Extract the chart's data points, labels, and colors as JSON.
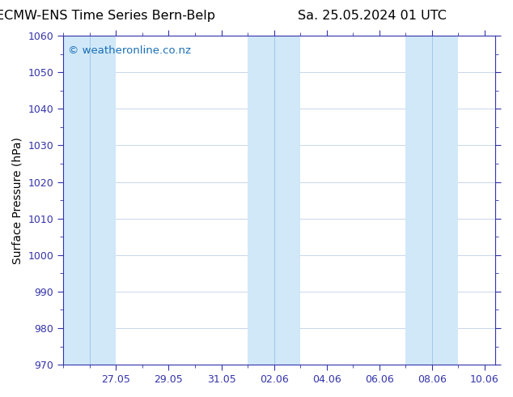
{
  "title_left": "ECMW-ENS Time Series Bern-Belp",
  "title_right": "Sa. 25.05.2024 01 UTC",
  "ylabel": "Surface Pressure (hPa)",
  "ylim": [
    970,
    1060
  ],
  "yticks": [
    970,
    980,
    990,
    1000,
    1010,
    1020,
    1030,
    1040,
    1050,
    1060
  ],
  "x_tick_labels": [
    "27.05",
    "29.05",
    "31.05",
    "02.06",
    "04.06",
    "06.06",
    "08.06",
    "10.06"
  ],
  "watermark": "© weatheronline.co.nz",
  "watermark_color": "#1a6eb5",
  "bg_color": "#ffffff",
  "plot_bg_color": "#ffffff",
  "stripe_color": "#d0e8f8",
  "title_fontsize": 11.5,
  "axis_label_fontsize": 10,
  "tick_fontsize": 9,
  "watermark_fontsize": 9.5,
  "tick_color": "#3333aa",
  "spine_color": "#3333aa",
  "minor_tick_color": "#3333aa"
}
